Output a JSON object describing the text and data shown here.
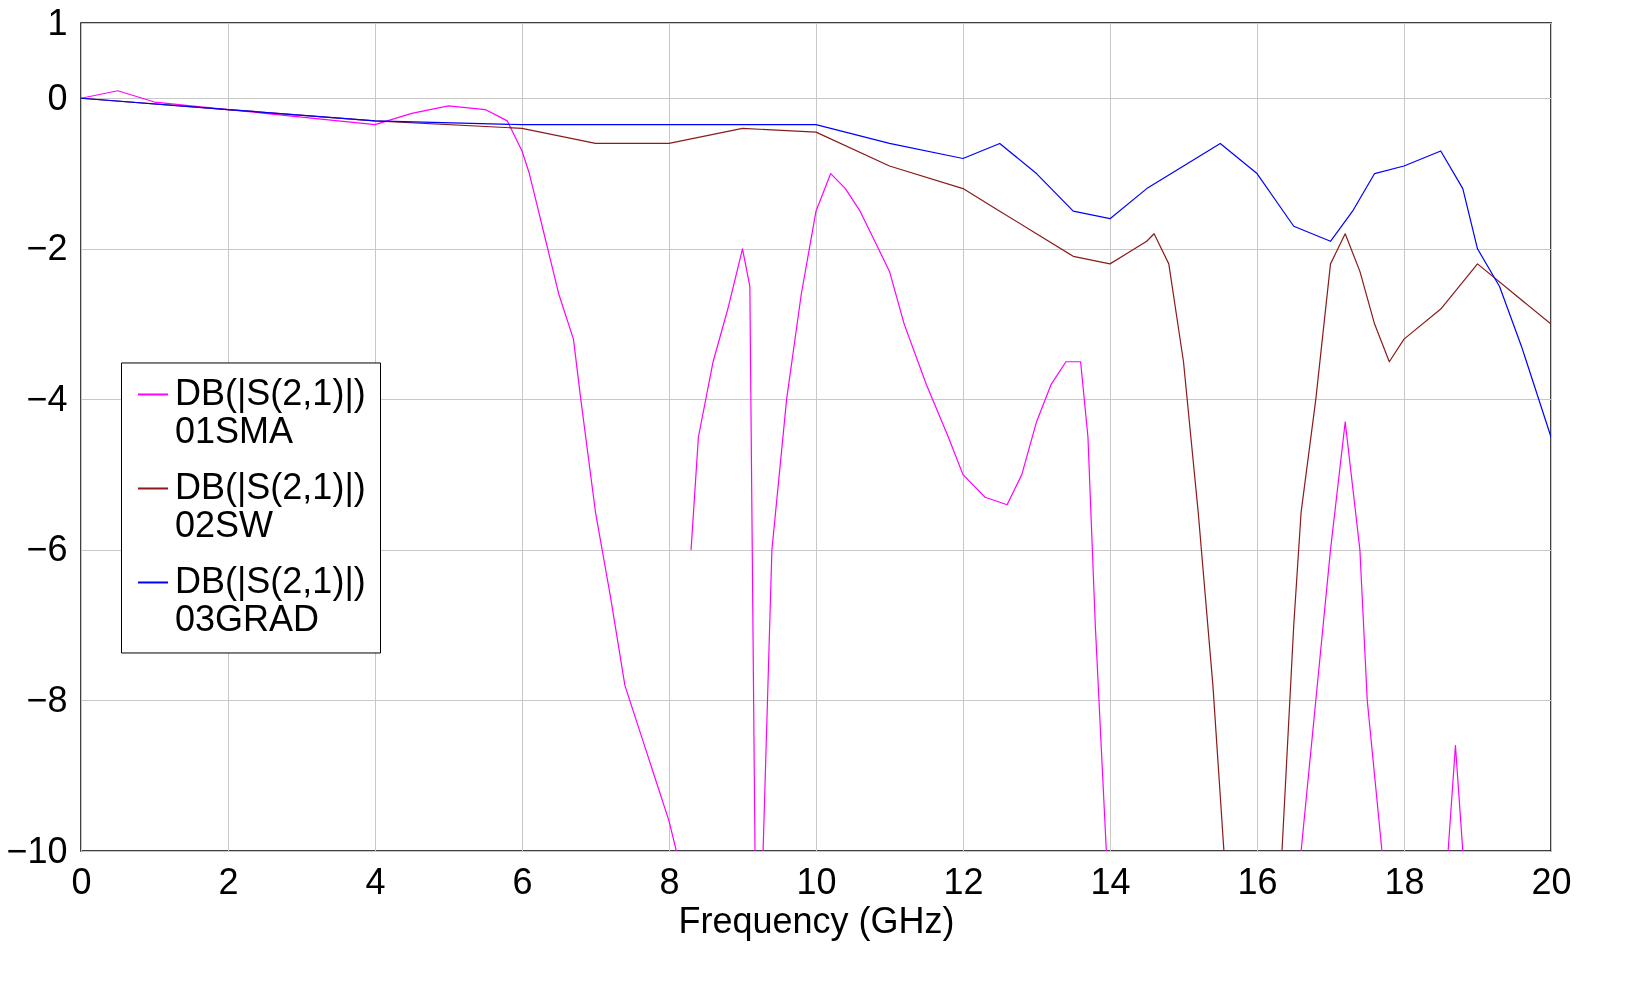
{
  "chart_data": {
    "type": "line",
    "xlabel": "Frequency (GHz)",
    "xlim": [
      0,
      20
    ],
    "xticks": [
      0,
      2,
      4,
      6,
      8,
      10,
      12,
      14,
      16,
      18,
      20
    ],
    "ylim": [
      -10,
      1
    ],
    "yticks": [
      -10,
      -8,
      -6,
      -4,
      -2,
      0,
      1
    ],
    "grid": true,
    "legend": "left",
    "line_style": "solid",
    "series": [
      {
        "name": "DB(|S(2,1)|)\n01SMA",
        "color": "#ff00ff",
        "x": [
          0,
          0.5,
          1,
          1.5,
          2,
          2.5,
          3,
          3.5,
          4,
          4.5,
          5,
          5.5,
          5.8,
          6,
          6.1,
          6.2,
          6.3,
          6.5,
          6.7,
          6.8,
          7,
          7.2,
          7.4,
          7.6,
          7.8,
          8,
          8.1,
          8.2,
          8.3,
          8.4,
          8.6,
          8.8,
          9,
          9.1,
          9.17,
          9.23,
          9.28,
          9.4,
          9.6,
          9.8,
          10,
          10.2,
          10.4,
          10.6,
          10.8,
          11,
          11.2,
          11.5,
          11.8,
          12,
          12.3,
          12.6,
          12.8,
          13,
          13.2,
          13.4,
          13.6,
          13.7,
          13.8,
          13.95,
          15,
          16.6,
          16.8,
          17,
          17.2,
          17.4,
          17.5,
          17.7,
          18,
          18.6,
          18.7,
          18.8
        ],
        "values": [
          0,
          0.1,
          -0.05,
          -0.1,
          -0.15,
          -0.2,
          -0.25,
          -0.3,
          -0.35,
          -0.2,
          -0.1,
          -0.15,
          -0.3,
          -0.7,
          -1.0,
          -1.4,
          -1.8,
          -2.6,
          -3.2,
          -4.0,
          -5.5,
          -6.6,
          -7.8,
          -8.4,
          -9.0,
          -9.6,
          -10,
          null,
          -6.0,
          -4.5,
          -3.5,
          -2.8,
          -2.0,
          -2.5,
          -10,
          null,
          -10,
          -6.0,
          -4.0,
          -2.6,
          -1.5,
          -1.0,
          -1.2,
          -1.5,
          -1.9,
          -2.3,
          -3.0,
          -3.8,
          -4.5,
          -5.0,
          -5.3,
          -5.4,
          -5.0,
          -4.3,
          -3.8,
          -3.5,
          -3.5,
          -4.5,
          -7.0,
          -10,
          null,
          -10,
          -8.0,
          -6.0,
          -4.3,
          -6.0,
          -8.0,
          -10,
          null,
          -10,
          -8.6,
          -10
        ]
      },
      {
        "name": "DB(|S(2,1)|)\n02SW",
        "color": "#8b1a1a",
        "x": [
          0,
          2,
          4,
          6,
          7,
          8,
          9,
          10,
          11,
          12,
          12.5,
          13,
          13.5,
          14,
          14.5,
          14.6,
          14.8,
          15,
          15.2,
          15.4,
          15.55,
          16,
          16.34,
          16.5,
          16.6,
          16.8,
          17,
          17.2,
          17.4,
          17.6,
          17.8,
          18,
          18.5,
          19,
          19.5,
          20
        ],
        "values": [
          0,
          -0.15,
          -0.3,
          -0.4,
          -0.6,
          -0.6,
          -0.4,
          -0.45,
          -0.9,
          -1.2,
          -1.5,
          -1.8,
          -2.1,
          -2.2,
          -1.9,
          -1.8,
          -2.2,
          -3.5,
          -5.5,
          -7.8,
          -10,
          null,
          -10,
          -7.0,
          -5.5,
          -4.0,
          -2.2,
          -1.8,
          -2.3,
          -3.0,
          -3.5,
          -3.2,
          -2.8,
          -2.2,
          -2.6,
          -3.0
        ]
      },
      {
        "name": "DB(|S(2,1)|)\n03GRAD",
        "color": "#0000ff",
        "x": [
          0,
          2,
          4,
          6,
          8,
          10,
          11,
          12,
          12.5,
          13,
          13.5,
          14,
          14.5,
          15,
          15.5,
          16,
          16.5,
          17,
          17.3,
          17.6,
          18,
          18.5,
          18.8,
          19,
          19.3,
          19.6,
          20
        ],
        "values": [
          0,
          -0.15,
          -0.3,
          -0.35,
          -0.35,
          -0.35,
          -0.6,
          -0.8,
          -0.6,
          -1.0,
          -1.5,
          -1.6,
          -1.2,
          -0.9,
          -0.6,
          -1.0,
          -1.7,
          -1.9,
          -1.5,
          -1.0,
          -0.9,
          -0.7,
          -1.2,
          -2.0,
          -2.5,
          -3.3,
          -4.5
        ]
      }
    ]
  }
}
